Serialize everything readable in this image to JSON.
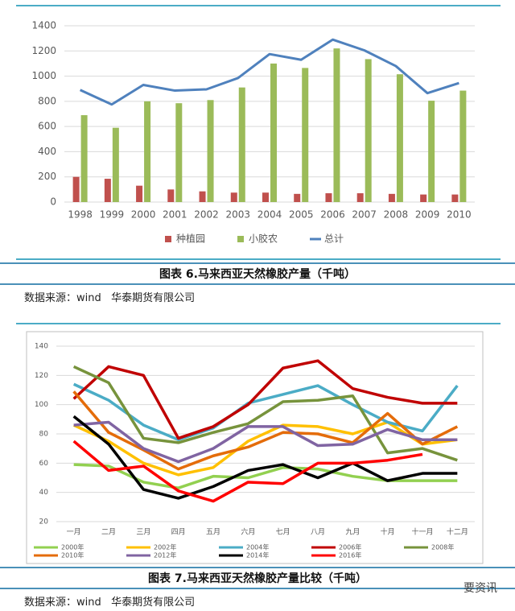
{
  "chart_data": [
    {
      "type": "bar",
      "categories": [
        "1998",
        "1999",
        "2000",
        "2001",
        "2002",
        "2003",
        "2004",
        "2005",
        "2006",
        "2007",
        "2008",
        "2009",
        "2010"
      ],
      "series": [
        {
          "name": "种植园",
          "type": "bar",
          "color": "#c0504d",
          "values": [
            200,
            185,
            130,
            100,
            85,
            75,
            75,
            65,
            70,
            70,
            65,
            60,
            60
          ]
        },
        {
          "name": "小胶农",
          "type": "bar",
          "color": "#9bbb59",
          "values": [
            690,
            590,
            800,
            785,
            810,
            910,
            1100,
            1065,
            1220,
            1135,
            1015,
            805,
            885
          ]
        },
        {
          "name": "总计",
          "type": "line",
          "color": "#4f81bd",
          "values": [
            890,
            775,
            930,
            885,
            895,
            985,
            1175,
            1130,
            1290,
            1205,
            1080,
            865,
            945
          ]
        }
      ],
      "ylim": [
        0,
        1400
      ],
      "yticks": [
        0,
        200,
        400,
        600,
        800,
        1000,
        1200,
        1400
      ],
      "grid": true,
      "legend": "bottom"
    },
    {
      "type": "line",
      "categories": [
        "一月",
        "二月",
        "三月",
        "四月",
        "五月",
        "六月",
        "七月",
        "八月",
        "九月",
        "十月",
        "十一月",
        "十二月"
      ],
      "series": [
        {
          "name": "2000年",
          "color": "#92d050",
          "values": [
            59,
            58,
            47,
            43,
            51,
            50,
            57,
            56,
            51,
            48,
            48,
            48
          ]
        },
        {
          "name": "2002年",
          "color": "#ffc000",
          "values": [
            86,
            75,
            60,
            52,
            57,
            75,
            86,
            85,
            80,
            88,
            73,
            76
          ]
        },
        {
          "name": "2004年",
          "color": "#4bacc6",
          "values": [
            114,
            103,
            86,
            76,
            84,
            101,
            107,
            113,
            100,
            88,
            82,
            113
          ]
        },
        {
          "name": "2006年",
          "color": "#c00000",
          "values": [
            104,
            126,
            120,
            77,
            85,
            100,
            125,
            130,
            111,
            105,
            101,
            101
          ]
        },
        {
          "name": "2008年",
          "color": "#77933c",
          "values": [
            126,
            115,
            77,
            74,
            81,
            87,
            102,
            103,
            106,
            67,
            70,
            62
          ]
        },
        {
          "name": "2010年",
          "color": "#e46c0a",
          "values": [
            109,
            81,
            69,
            56,
            65,
            71,
            81,
            80,
            74,
            94,
            73,
            85
          ]
        },
        {
          "name": "2012年",
          "color": "#8064a2",
          "values": [
            86,
            88,
            70,
            61,
            70,
            85,
            85,
            72,
            73,
            83,
            76,
            76
          ]
        },
        {
          "name": "2014年",
          "color": "#000000",
          "values": [
            92,
            73,
            42,
            36,
            44,
            55,
            59,
            50,
            60,
            48,
            53,
            53
          ]
        },
        {
          "name": "2016年",
          "color": "#ff0000",
          "values": [
            75,
            55,
            58,
            41,
            34,
            47,
            46,
            60,
            60,
            62,
            66,
            null
          ]
        }
      ],
      "ylim": [
        20,
        140
      ],
      "yticks": [
        20,
        40,
        60,
        80,
        100,
        120,
        140
      ],
      "grid": true,
      "legend": "bottom"
    }
  ],
  "captions": [
    "图表 6.马来西亚天然橡胶产量（千吨）",
    "图表 7.马来西亚天然橡胶产量比较（千吨）"
  ],
  "sources": [
    "数据来源：wind   华泰期货有限公司",
    "数据来源：wind   华泰期货有限公司"
  ],
  "watermark": "要资讯"
}
